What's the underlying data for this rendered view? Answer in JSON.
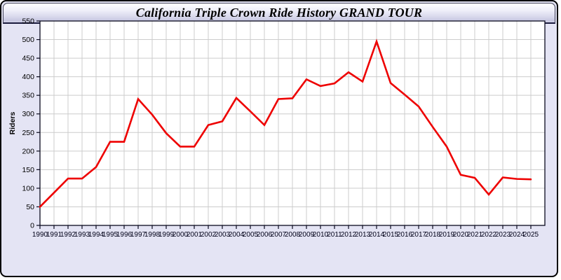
{
  "window": {
    "title": "California Triple Crown Ride History GRAND TOUR"
  },
  "chart_data": {
    "type": "line",
    "title": "California Triple Crown Ride History GRAND TOUR",
    "xlabel": "",
    "ylabel": "Riders",
    "x": [
      1990,
      1991,
      1992,
      1993,
      1994,
      1995,
      1996,
      1997,
      1998,
      1999,
      2000,
      2001,
      2002,
      2003,
      2004,
      2005,
      2006,
      2007,
      2008,
      2009,
      2010,
      2011,
      2012,
      2013,
      2014,
      2015,
      2016,
      2017,
      2018,
      2019,
      2020,
      2021,
      2022,
      2023,
      2024,
      2025
    ],
    "series": [
      {
        "name": "Riders",
        "values": [
          50,
          88,
          126,
          126,
          157,
          225,
          225,
          340,
          298,
          248,
          212,
          212,
          270,
          280,
          343,
          307,
          270,
          340,
          342,
          393,
          375,
          382,
          412,
          387,
          495,
          383,
          352,
          320,
          265,
          212,
          136,
          128,
          83,
          129,
          125,
          124
        ]
      }
    ],
    "ylim": [
      0,
      550
    ],
    "ytick_interval": 50,
    "grid": true,
    "legend_position": "none",
    "colors": {
      "line": "#ee0000",
      "grid": "#cccccc",
      "plot_background": "#ffffff",
      "panel_background": "#e4e4f4",
      "axis": "#0a0a1e",
      "tick_text": "#000018"
    }
  }
}
